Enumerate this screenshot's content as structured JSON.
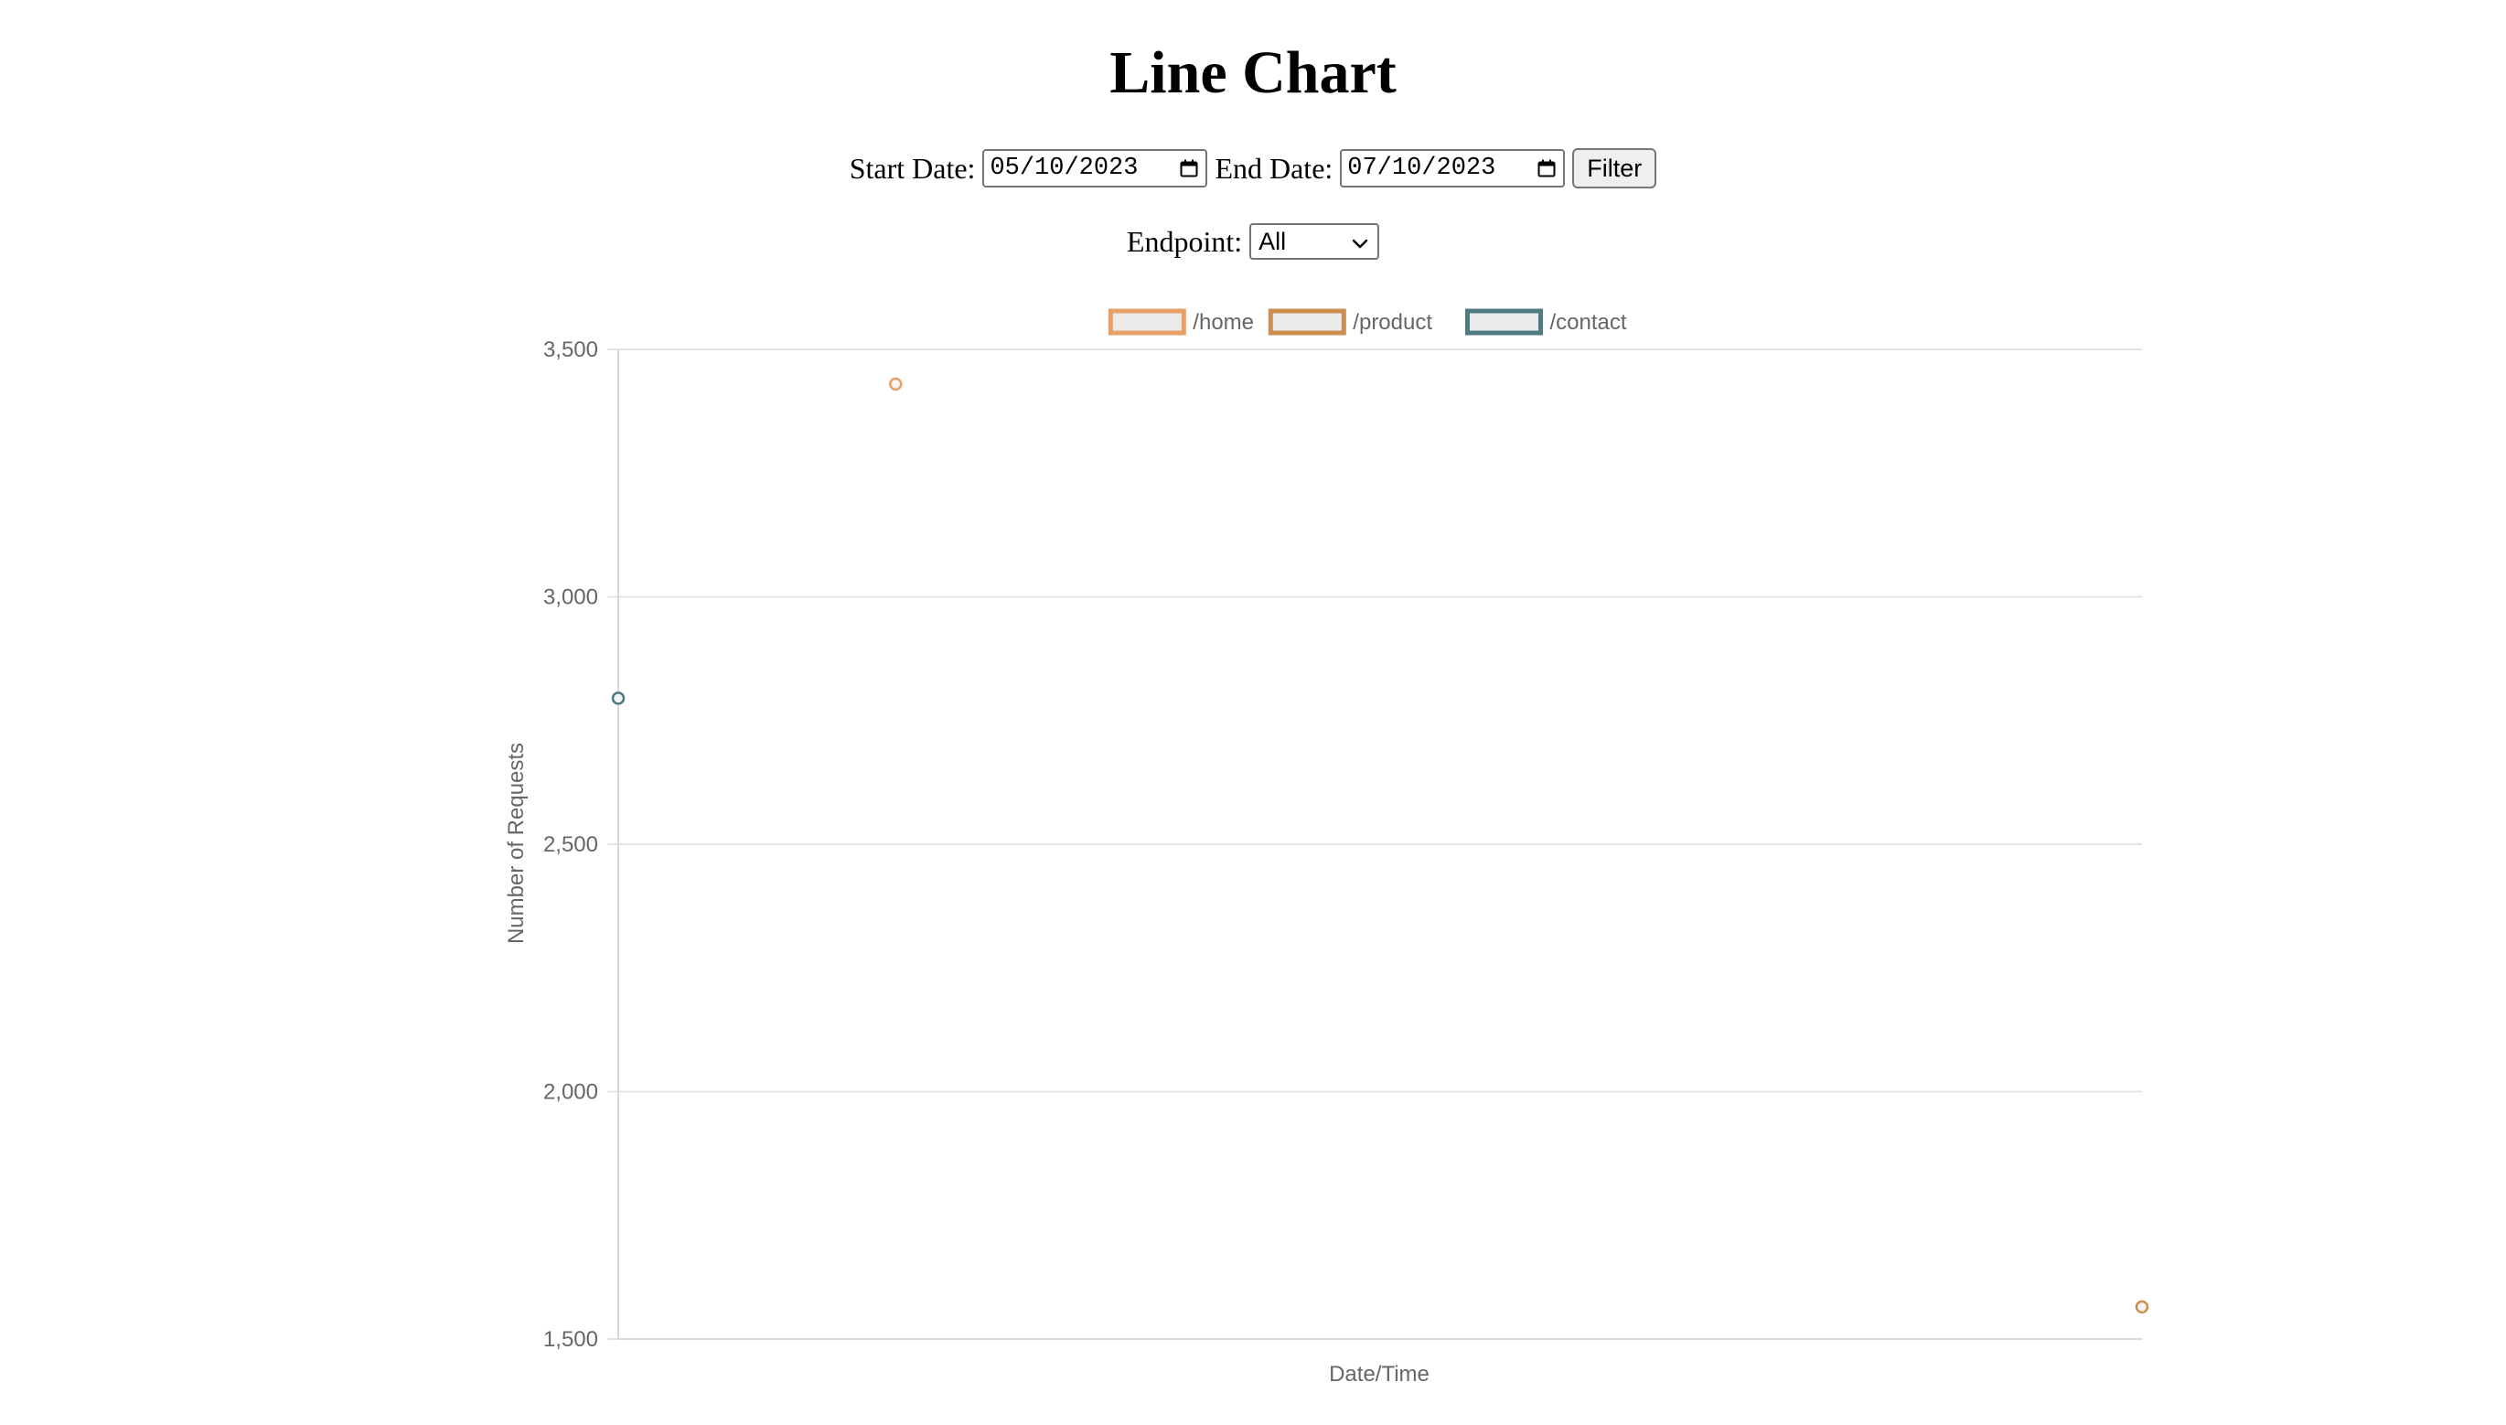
{
  "page": {
    "title": "Line Chart"
  },
  "filters": {
    "start_label": "Start Date:",
    "start_value": "05/10/2023",
    "end_label": "End Date:",
    "end_value": "07/10/2023",
    "filter_button": "Filter",
    "endpoint_label": "Endpoint:",
    "endpoint_value": "All",
    "calendar_icon": "calendar-icon",
    "dropdown_icon": "chevron-down-icon"
  },
  "chart_data": {
    "type": "line",
    "title": "",
    "xlabel": "Date/Time",
    "ylabel": "Number of Requests",
    "ylim": [
      1500,
      3500
    ],
    "yticks": [
      1500,
      2000,
      2500,
      3000,
      3500
    ],
    "ytick_labels": [
      "1,500",
      "2,000",
      "2,500",
      "3,000",
      "3,500"
    ],
    "xticks": [],
    "grid": true,
    "legend_position": "top",
    "series": [
      {
        "name": "/home",
        "color": "#e8a06b",
        "points": [
          {
            "x": 0.182,
            "y": 3430
          }
        ]
      },
      {
        "name": "/product",
        "color": "#cc8f4f",
        "points": [
          {
            "x": 1.0,
            "y": 1565
          }
        ]
      },
      {
        "name": "/contact",
        "color": "#4e7a80",
        "points": [
          {
            "x": 0.0,
            "y": 2795
          }
        ]
      }
    ]
  }
}
